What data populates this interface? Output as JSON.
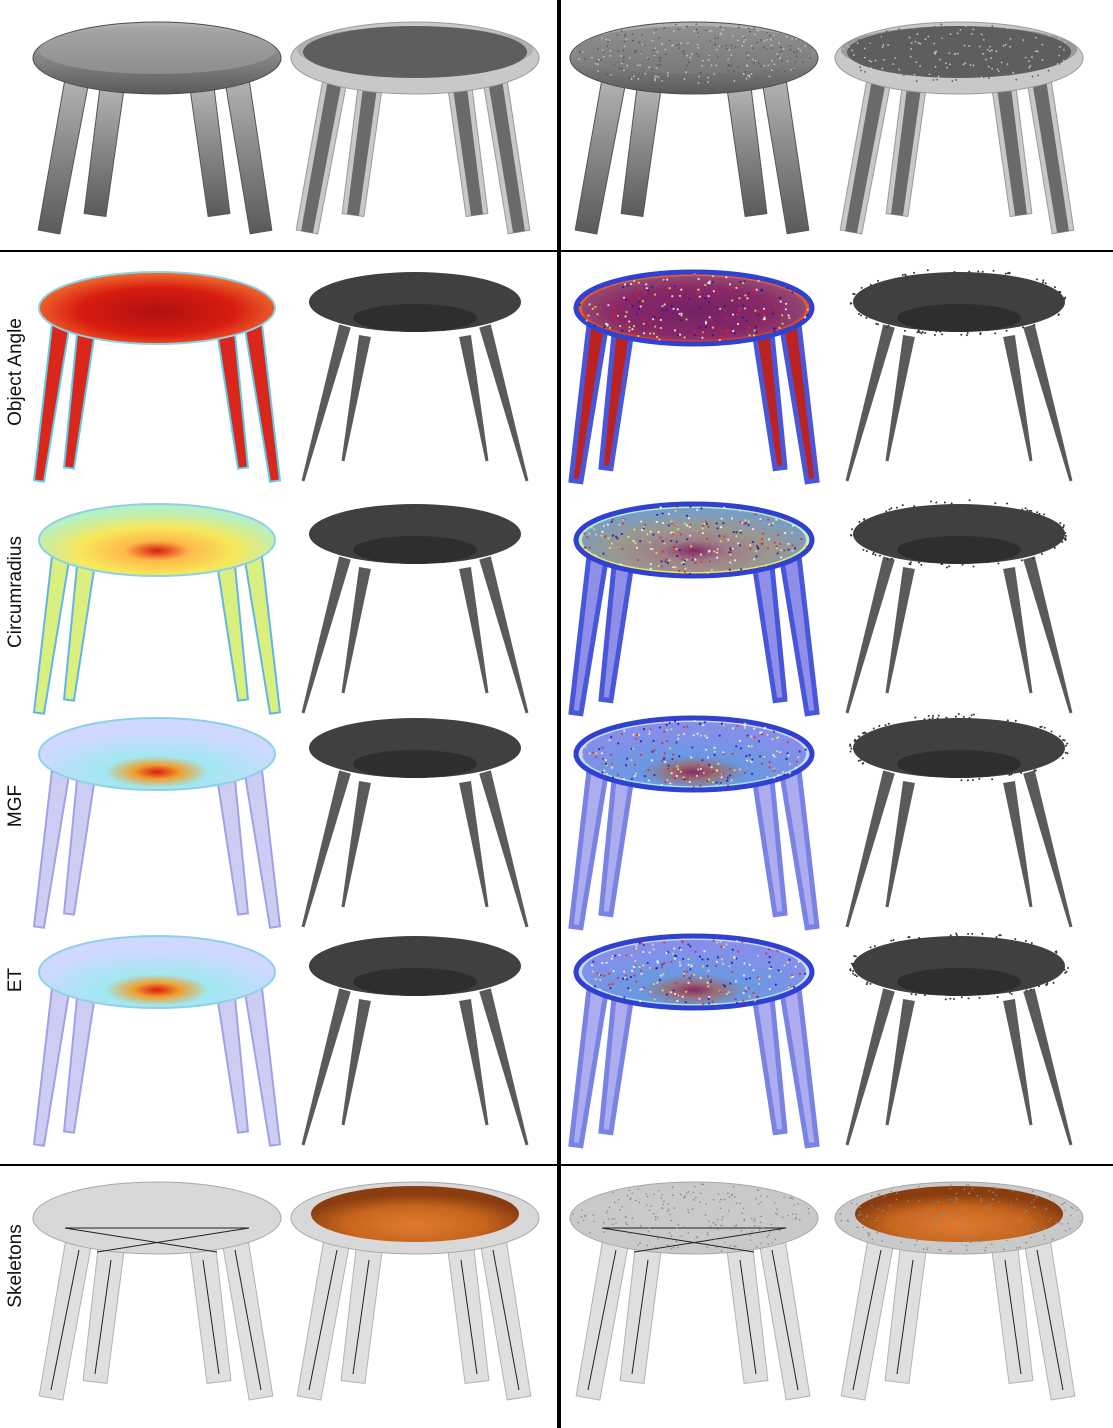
{
  "figure": {
    "row_labels": {
      "object_angle": "Object Angle",
      "circumradius": "Circumradius",
      "mgf": "MGF",
      "et": "ET",
      "skeletons": "Skeletons"
    },
    "colors": {
      "mesh_gray": "#8c8c8c",
      "result_dark": "#404040",
      "skeleton_ghost": "#dcdcdc",
      "skeleton_sheet": "#c8661e",
      "heat_high": "#d81c10",
      "heat_mid": "#f7e85a",
      "heat_low": "#2020c8"
    },
    "panels_left_column": [
      "clean-mesh",
      "noisy-variant-clean"
    ],
    "panels_right_column": [
      "noisy-mesh",
      "noisy-variant"
    ]
  }
}
